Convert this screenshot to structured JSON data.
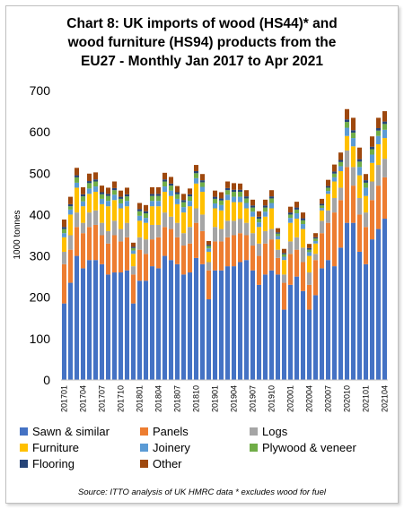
{
  "chart_data": {
    "type": "bar",
    "stacked": true,
    "title_lines": [
      "Chart 8: UK imports of wood (HS44)* and",
      "wood furniture (HS94) products from the",
      "EU27 - Monthly Jan 2017 to Apr 2021"
    ],
    "ylabel": "1000 tonnes",
    "xlabel": "",
    "ylim": [
      0,
      700
    ],
    "yticks": [
      0,
      100,
      200,
      300,
      400,
      500,
      600,
      700
    ],
    "grid": false,
    "legend_position": "bottom",
    "categories": [
      "201701",
      "201702",
      "201703",
      "201704",
      "201705",
      "201706",
      "201707",
      "201708",
      "201709",
      "201710",
      "201711",
      "201712",
      "201801",
      "201802",
      "201803",
      "201804",
      "201805",
      "201806",
      "201807",
      "201808",
      "201809",
      "201810",
      "201811",
      "201812",
      "201901",
      "201902",
      "201903",
      "201904",
      "201905",
      "201906",
      "201907",
      "201908",
      "201909",
      "201910",
      "201911",
      "201912",
      "202001",
      "202002",
      "202003",
      "202004",
      "202005",
      "202006",
      "202007",
      "202008",
      "202009",
      "202010",
      "202011",
      "202012",
      "202101",
      "202102",
      "202103",
      "202104"
    ],
    "tick_labels_shown": [
      "201701",
      "201704",
      "201707",
      "201710",
      "201801",
      "201804",
      "201807",
      "201810",
      "201901",
      "201904",
      "201907",
      "201910",
      "202001",
      "202004",
      "202007",
      "202010",
      "202101",
      "202104"
    ],
    "series": [
      {
        "name": "Sawn & similar",
        "color": "#4472c4",
        "values": [
          185,
          235,
          300,
          270,
          290,
          290,
          280,
          255,
          260,
          260,
          265,
          185,
          240,
          240,
          275,
          270,
          300,
          290,
          280,
          255,
          260,
          295,
          280,
          195,
          265,
          265,
          275,
          275,
          285,
          290,
          265,
          230,
          255,
          265,
          255,
          170,
          230,
          250,
          215,
          170,
          205,
          270,
          290,
          275,
          320,
          380,
          380,
          310,
          280,
          340,
          365,
          390
        ]
      },
      {
        "name": "Panels",
        "color": "#ed7d31",
        "values": [
          95,
          80,
          70,
          85,
          80,
          85,
          70,
          75,
          90,
          75,
          80,
          70,
          75,
          65,
          65,
          75,
          70,
          75,
          65,
          70,
          70,
          85,
          80,
          70,
          70,
          70,
          70,
          75,
          70,
          60,
          60,
          70,
          75,
          75,
          40,
          65,
          75,
          65,
          70,
          60,
          85,
          85,
          90,
          130,
          115,
          135,
          90,
          90,
          90,
          95,
          105,
          100
        ]
      },
      {
        "name": "Logs",
        "color": "#a5a5a5",
        "values": [
          30,
          35,
          35,
          25,
          35,
          35,
          30,
          30,
          35,
          30,
          35,
          20,
          30,
          35,
          35,
          30,
          35,
          30,
          35,
          30,
          40,
          35,
          40,
          20,
          35,
          30,
          40,
          35,
          35,
          30,
          30,
          30,
          30,
          25,
          20,
          20,
          30,
          30,
          35,
          30,
          15,
          30,
          30,
          35,
          30,
          40,
          45,
          40,
          35,
          45,
          50,
          45
        ]
      },
      {
        "name": "Furniture",
        "color": "#ffc000",
        "values": [
          35,
          50,
          60,
          40,
          45,
          45,
          45,
          60,
          50,
          50,
          40,
          30,
          40,
          40,
          45,
          45,
          50,
          50,
          45,
          50,
          50,
          60,
          55,
          25,
          45,
          45,
          50,
          45,
          40,
          35,
          40,
          40,
          35,
          50,
          25,
          35,
          45,
          45,
          45,
          40,
          25,
          25,
          40,
          40,
          40,
          35,
          50,
          55,
          40,
          45,
          50,
          50
        ]
      },
      {
        "name": "Joinery",
        "color": "#5b9bd5",
        "values": [
          10,
          12,
          12,
          12,
          13,
          13,
          13,
          13,
          13,
          12,
          13,
          8,
          12,
          12,
          13,
          13,
          13,
          13,
          13,
          13,
          13,
          13,
          12,
          8,
          12,
          13,
          13,
          13,
          13,
          13,
          12,
          11,
          12,
          13,
          8,
          8,
          12,
          13,
          12,
          9,
          6,
          6,
          7,
          10,
          12,
          20,
          20,
          20,
          20,
          20,
          20,
          20
        ]
      },
      {
        "name": "Plywood & veneer",
        "color": "#70ad47",
        "values": [
          10,
          8,
          13,
          12,
          13,
          12,
          11,
          12,
          11,
          11,
          11,
          6,
          11,
          11,
          12,
          12,
          12,
          12,
          11,
          12,
          11,
          12,
          11,
          6,
          11,
          11,
          11,
          12,
          12,
          11,
          10,
          9,
          10,
          11,
          6,
          6,
          8,
          9,
          9,
          6,
          6,
          6,
          8,
          9,
          10,
          14,
          13,
          13,
          12,
          13,
          13,
          14
        ]
      },
      {
        "name": "Flooring",
        "color": "#264478",
        "values": [
          5,
          5,
          5,
          5,
          5,
          5,
          5,
          5,
          5,
          5,
          5,
          3,
          5,
          5,
          5,
          5,
          5,
          5,
          5,
          5,
          5,
          5,
          5,
          3,
          5,
          5,
          5,
          5,
          5,
          5,
          5,
          5,
          5,
          5,
          3,
          3,
          5,
          5,
          5,
          4,
          3,
          4,
          4,
          5,
          5,
          6,
          6,
          6,
          6,
          6,
          6,
          6
        ]
      },
      {
        "name": "Other",
        "color": "#9e480e",
        "values": [
          18,
          18,
          18,
          17,
          18,
          17,
          16,
          15,
          16,
          15,
          16,
          10,
          15,
          15,
          16,
          16,
          16,
          16,
          15,
          15,
          14,
          15,
          15,
          9,
          15,
          15,
          16,
          16,
          15,
          15,
          14,
          13,
          14,
          15,
          10,
          10,
          14,
          14,
          14,
          10,
          10,
          12,
          15,
          17,
          18,
          25,
          30,
          28,
          15,
          25,
          25,
          25
        ]
      }
    ]
  },
  "legend": [
    {
      "label": "Sawn & similar",
      "color": "#4472c4"
    },
    {
      "label": "Panels",
      "color": "#ed7d31"
    },
    {
      "label": "Logs",
      "color": "#a5a5a5"
    },
    {
      "label": "Furniture",
      "color": "#ffc000"
    },
    {
      "label": "Joinery",
      "color": "#5b9bd5"
    },
    {
      "label": "Plywood & veneer",
      "color": "#70ad47"
    },
    {
      "label": "Flooring",
      "color": "#264478"
    },
    {
      "label": "Other",
      "color": "#9e480e"
    }
  ],
  "source": "Source: ITTO analysis of UK HMRC data  * excludes wood for fuel"
}
